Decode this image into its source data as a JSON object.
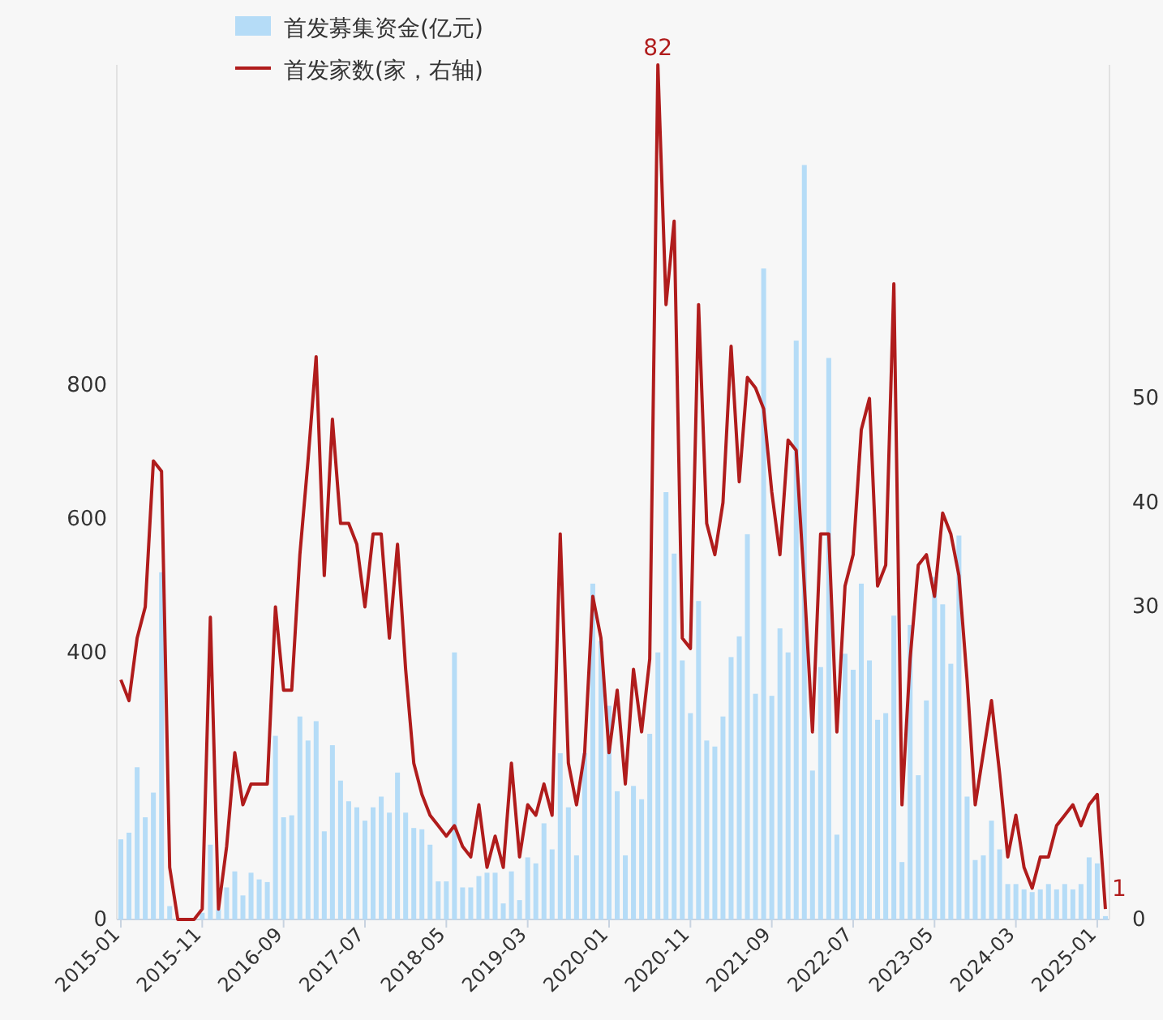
{
  "chart_data": {
    "type": "bar",
    "categories": [
      "2015-01",
      null,
      null,
      null,
      null,
      null,
      null,
      null,
      null,
      null,
      "2015-11",
      null,
      null,
      null,
      null,
      null,
      null,
      null,
      null,
      null,
      "2016-09",
      null,
      null,
      null,
      null,
      null,
      null,
      null,
      null,
      null,
      "2017-07",
      null,
      null,
      null,
      null,
      null,
      null,
      null,
      null,
      null,
      "2018-05",
      null,
      null,
      null,
      null,
      null,
      null,
      null,
      null,
      null,
      "2019-03",
      null,
      null,
      null,
      null,
      null,
      null,
      null,
      null,
      null,
      "2020-01",
      null,
      null,
      null,
      null,
      null,
      null,
      null,
      null,
      null,
      "2020-11",
      null,
      null,
      null,
      null,
      null,
      null,
      null,
      null,
      null,
      "2021-09",
      null,
      null,
      null,
      null,
      null,
      null,
      null,
      null,
      null,
      "2022-07",
      null,
      null,
      null,
      null,
      null,
      null,
      null,
      null,
      null,
      "2023-05",
      null,
      null,
      null,
      null,
      null,
      null,
      null,
      null,
      null,
      "2024-03",
      null,
      null,
      null,
      null,
      null,
      null,
      null,
      null,
      null,
      "2025-01",
      null
    ],
    "series": [
      {
        "name": "首发募集资金(亿元)",
        "color": "#b5dcf7",
        "values": [
          120,
          130,
          228,
          153,
          190,
          520,
          20,
          0,
          0,
          0,
          10,
          112,
          15,
          48,
          72,
          36,
          70,
          60,
          56,
          275,
          153,
          156,
          304,
          268,
          297,
          132,
          261,
          208,
          177,
          168,
          148,
          168,
          184,
          160,
          220,
          160,
          137,
          135,
          112,
          57,
          57,
          400,
          48,
          48,
          65,
          70,
          70,
          24,
          72,
          29,
          93,
          84,
          144,
          105,
          249,
          168,
          96,
          249,
          503,
          417,
          320,
          192,
          96,
          200,
          180,
          278,
          400,
          640,
          548,
          388,
          309,
          477,
          268,
          259,
          304,
          393,
          424,
          577,
          338,
          975,
          335,
          436,
          400,
          867,
          1130,
          223,
          378,
          841,
          127,
          398,
          374,
          503,
          388,
          299,
          309,
          455,
          86,
          441,
          216,
          328,
          513,
          472,
          383,
          575,
          184,
          89,
          96,
          148,
          105,
          53,
          53,
          45,
          41,
          45,
          53,
          45,
          53,
          45,
          53,
          93,
          84,
          5
        ]
      },
      {
        "name": "首发家数(家，右轴)",
        "type": "line",
        "axis": "y2",
        "color": "#b01c1c",
        "values": [
          23,
          21,
          27,
          30,
          44,
          43,
          5,
          0,
          0,
          0,
          1,
          29,
          1,
          7,
          16,
          11,
          13,
          13,
          13,
          30,
          22,
          22,
          35,
          44,
          54,
          33,
          48,
          38,
          38,
          36,
          30,
          37,
          37,
          27,
          36,
          24,
          15,
          12,
          10,
          9,
          8,
          9,
          7,
          6,
          11,
          5,
          8,
          5,
          15,
          6,
          11,
          10,
          13,
          10,
          37,
          15,
          11,
          16,
          31,
          27,
          16,
          22,
          13,
          24,
          18,
          25,
          82,
          59,
          67,
          27,
          26,
          59,
          38,
          35,
          40,
          55,
          42,
          52,
          51,
          49,
          41,
          35,
          46,
          45,
          32,
          18,
          37,
          37,
          18,
          32,
          35,
          47,
          50,
          32,
          34,
          61,
          11,
          25,
          34,
          35,
          31,
          39,
          37,
          33,
          23,
          11,
          16,
          21,
          14,
          6,
          10,
          5,
          3,
          6,
          6,
          9,
          10,
          11,
          9,
          11,
          12,
          1
        ],
        "value_labels": [
          null,
          null,
          null,
          null,
          null,
          null,
          null,
          null,
          null,
          null,
          null,
          null,
          null,
          null,
          null,
          null,
          null,
          null,
          null,
          null,
          null,
          null,
          null,
          null,
          null,
          null,
          null,
          null,
          null,
          null,
          null,
          null,
          null,
          null,
          null,
          null,
          null,
          null,
          null,
          null,
          null,
          null,
          null,
          null,
          null,
          null,
          null,
          null,
          null,
          null,
          null,
          null,
          null,
          null,
          null,
          null,
          null,
          null,
          null,
          null,
          null,
          null,
          null,
          null,
          null,
          null,
          "82",
          null,
          null,
          null,
          null,
          null,
          null,
          null,
          null,
          null,
          null,
          null,
          null,
          null,
          null,
          null,
          null,
          null,
          null,
          null,
          null,
          null,
          null,
          null,
          null,
          null,
          null,
          null,
          null,
          null,
          null,
          null,
          null,
          null,
          null,
          null,
          null,
          null,
          null,
          null,
          null,
          null,
          null,
          null,
          null,
          null,
          null,
          null,
          null,
          null,
          null,
          null,
          null,
          null,
          null,
          "1"
        ]
      }
    ],
    "ylim": [
      0,
      1280
    ],
    "yticks": [
      0,
      400,
      600,
      800
    ],
    "y2lim": [
      0,
      82
    ],
    "y2ticks": [
      0,
      30,
      40,
      50
    ],
    "legend": "top left"
  }
}
